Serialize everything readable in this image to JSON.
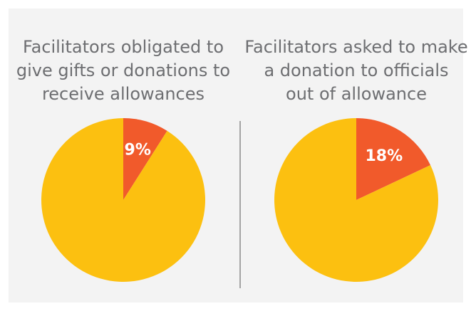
{
  "chart_data": [
    {
      "type": "pie",
      "title": [
        "Facilitators obligated to",
        "give gifts or donations to",
        "receive allowances"
      ],
      "values": [
        9,
        91
      ],
      "value_labels": [
        "9%",
        null
      ],
      "colors": [
        "#f15a2b",
        "#fcc010"
      ]
    },
    {
      "type": "pie",
      "title": [
        "Facilitators asked to make",
        "a donation to officials",
        "out of allowance"
      ],
      "values": [
        18,
        82
      ],
      "value_labels": [
        "18%",
        null
      ],
      "colors": [
        "#f15a2b",
        "#fcc010"
      ]
    }
  ]
}
